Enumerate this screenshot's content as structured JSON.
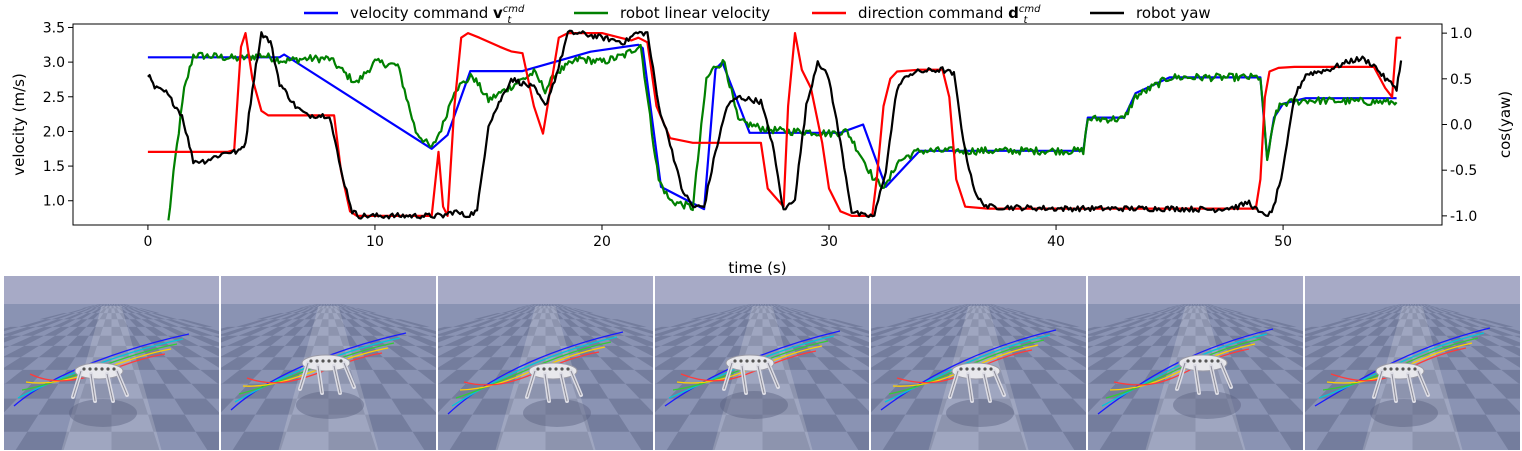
{
  "chart_data": {
    "type": "line",
    "xlabel": "time (s)",
    "ylabel": "velocity (m/s)",
    "ylabel_right": "cos(yaw)",
    "xlim": [
      -3.3,
      57.0
    ],
    "ylim": [
      0.65,
      3.55
    ],
    "ylim_right": [
      -1.1,
      1.1
    ],
    "x_ticks": [
      0,
      10,
      20,
      30,
      40,
      50
    ],
    "y_ticks": [
      1.0,
      1.5,
      2.0,
      2.5,
      3.0,
      3.5
    ],
    "y_ticks_right": [
      -1.0,
      -0.5,
      0.0,
      0.5,
      1.0
    ],
    "legend": {
      "position": "top",
      "entries": [
        {
          "series": "velocity_command",
          "label": "velocity command ",
          "math_bold": "v",
          "math_sub": "t",
          "math_sup": "cmd"
        },
        {
          "series": "robot_linear_velocity",
          "label": "robot linear velocity"
        },
        {
          "series": "direction_command",
          "label": "direction command ",
          "math_bold": "d",
          "math_sub": "t",
          "math_sup": "cmd"
        },
        {
          "series": "robot_yaw",
          "label": "robot yaw"
        }
      ]
    },
    "series": [
      {
        "id": "velocity_command",
        "axis": "left",
        "color": "#0000ff",
        "x": [
          0,
          5.8,
          6.0,
          12.5,
          13.2,
          14.2,
          16.5,
          19.5,
          21.6,
          21.8,
          22.6,
          24.5,
          25.0,
          25.3,
          26.5,
          27.5,
          30.5,
          31.5,
          32.5,
          33.5,
          34.0,
          41.2,
          41.4,
          43.0,
          43.5,
          45.0,
          49.0,
          49.3,
          49.6,
          50.0,
          51.0,
          55.0
        ],
        "y": [
          3.07,
          3.07,
          3.11,
          1.75,
          1.95,
          2.87,
          2.87,
          3.15,
          3.25,
          3.2,
          1.2,
          0.88,
          2.9,
          3.0,
          1.98,
          1.98,
          1.98,
          2.1,
          1.2,
          1.55,
          1.72,
          1.72,
          2.2,
          2.2,
          2.55,
          2.78,
          2.78,
          1.6,
          2.2,
          2.4,
          2.48,
          2.48
        ]
      },
      {
        "id": "robot_linear_velocity",
        "axis": "left",
        "color": "#008000",
        "x": [
          0.9,
          1.2,
          1.6,
          2.0,
          3.0,
          4.0,
          5.0,
          6.0,
          7.0,
          8.0,
          8.8,
          9.2,
          10.0,
          11.0,
          11.3,
          11.8,
          12.5,
          13.0,
          13.5,
          14.3,
          15.0,
          16.0,
          17.0,
          17.5,
          18.0,
          19.0,
          20.0,
          21.0,
          21.7,
          22.2,
          22.5,
          23.0,
          24.0,
          24.6,
          25.0,
          25.4,
          26.0,
          27.0,
          28.0,
          29.0,
          30.0,
          30.8,
          31.5,
          32.0,
          32.5,
          33.0,
          33.5,
          34.0,
          36.0,
          38.0,
          40.0,
          41.2,
          41.4,
          43.0,
          43.5,
          45.0,
          48.5,
          49.0,
          49.3,
          49.7,
          50.0,
          51.0,
          55.0
        ],
        "y": [
          0.7,
          1.6,
          2.6,
          3.1,
          3.08,
          3.05,
          3.1,
          3.02,
          3.05,
          3.05,
          2.8,
          2.7,
          3.0,
          2.95,
          2.6,
          2.0,
          1.75,
          2.1,
          2.6,
          2.8,
          2.45,
          2.65,
          2.85,
          2.6,
          2.85,
          3.05,
          3.0,
          3.1,
          3.25,
          2.0,
          1.3,
          1.0,
          0.9,
          2.75,
          2.95,
          3.0,
          2.15,
          2.05,
          2.0,
          2.0,
          1.97,
          2.0,
          1.6,
          1.3,
          1.2,
          1.55,
          1.65,
          1.72,
          1.72,
          1.72,
          1.72,
          1.72,
          2.18,
          2.18,
          2.5,
          2.78,
          2.78,
          2.78,
          1.6,
          2.3,
          2.4,
          2.45,
          2.42
        ],
        "noise": 0.055
      },
      {
        "id": "direction_command",
        "axis": "right",
        "color": "#ff0000",
        "x": [
          0,
          3.5,
          3.8,
          4.1,
          4.3,
          4.6,
          5.0,
          5.3,
          6.0,
          8.2,
          8.5,
          8.9,
          9.2,
          10.0,
          12.5,
          12.8,
          13.0,
          13.2,
          13.5,
          13.8,
          14.1,
          14.6,
          15.5,
          16.0,
          16.5,
          17.0,
          17.4,
          17.8,
          18.1,
          18.5,
          19.0,
          20.0,
          20.8,
          21.3,
          21.6,
          22.0,
          22.4,
          23.0,
          24.0,
          26.0,
          27.0,
          27.3,
          28.0,
          28.2,
          28.5,
          28.8,
          29.2,
          29.7,
          30.0,
          30.5,
          31.0,
          31.5,
          31.9,
          32.1,
          32.4,
          32.7,
          33.0,
          34.0,
          35.0,
          35.3,
          35.6,
          36.0,
          37.0,
          40.0,
          45.0,
          48.0,
          48.8,
          49.0,
          49.2,
          49.4,
          49.8,
          50.5,
          51.0,
          54.0,
          54.5,
          54.8,
          55.0,
          55.2
        ],
        "y": [
          -0.3,
          -0.3,
          -0.28,
          0.85,
          1.0,
          0.5,
          0.15,
          0.1,
          0.1,
          0.1,
          -0.5,
          -0.95,
          -1.0,
          -1.0,
          -1.0,
          -0.3,
          -0.9,
          -1.0,
          0.2,
          0.95,
          1.0,
          0.95,
          0.85,
          0.8,
          0.78,
          0.2,
          -0.1,
          0.5,
          0.95,
          1.0,
          1.0,
          1.0,
          0.95,
          0.92,
          0.95,
          0.9,
          0.2,
          -0.15,
          -0.2,
          -0.2,
          -0.2,
          -0.7,
          -0.9,
          0.2,
          1.0,
          0.6,
          0.4,
          -0.2,
          -0.7,
          -0.95,
          -1.0,
          -1.0,
          -1.0,
          -0.6,
          0.2,
          0.5,
          0.58,
          0.6,
          0.6,
          0.3,
          -0.6,
          -0.9,
          -0.92,
          -0.92,
          -0.92,
          -0.92,
          -0.92,
          -0.6,
          0.3,
          0.58,
          0.62,
          0.63,
          0.63,
          0.63,
          0.4,
          0.3,
          0.95,
          0.95
        ]
      },
      {
        "id": "robot_yaw",
        "axis": "right",
        "color": "#000000",
        "x": [
          0,
          0.3,
          0.8,
          1.5,
          2.0,
          2.5,
          3.0,
          3.5,
          3.8,
          4.0,
          4.3,
          4.6,
          5.0,
          5.4,
          5.8,
          6.5,
          7.0,
          8.0,
          8.5,
          9.0,
          9.3,
          9.6,
          10.0,
          11.0,
          12.0,
          13.0,
          13.5,
          14.0,
          14.5,
          15.0,
          16.0,
          17.0,
          17.5,
          18.0,
          18.5,
          19.0,
          20.0,
          21.0,
          21.5,
          22.0,
          22.5,
          23.0,
          23.5,
          24.0,
          24.5,
          25.0,
          25.5,
          26.0,
          27.0,
          27.5,
          28.0,
          28.5,
          29.0,
          29.5,
          30.0,
          30.5,
          31.0,
          31.5,
          32.0,
          32.5,
          33.0,
          33.5,
          34.0,
          35.0,
          35.5,
          36.0,
          36.5,
          37.0,
          40.0,
          45.0,
          47.0,
          48.0,
          48.5,
          49.0,
          49.5,
          50.0,
          50.5,
          51.0,
          52.0,
          53.0,
          53.5,
          54.0,
          54.5,
          55.0,
          55.2
        ],
        "y": [
          0.55,
          0.4,
          0.35,
          0.1,
          -0.4,
          -0.4,
          -0.35,
          -0.3,
          -0.3,
          -0.3,
          -0.2,
          0.4,
          1.0,
          0.9,
          0.45,
          0.2,
          0.1,
          0.1,
          -0.5,
          -0.95,
          -1.0,
          -1.0,
          -1.0,
          -1.0,
          -1.0,
          -1.0,
          -0.95,
          -1.0,
          -0.95,
          0.0,
          0.5,
          0.4,
          0.2,
          0.55,
          1.0,
          1.0,
          0.95,
          0.9,
          1.0,
          1.0,
          0.2,
          -0.2,
          -0.7,
          -0.9,
          -0.9,
          -0.3,
          0.2,
          0.3,
          0.25,
          -0.2,
          -0.95,
          -0.8,
          0.2,
          0.7,
          0.5,
          -0.2,
          -0.95,
          -1.0,
          -1.0,
          -0.5,
          0.4,
          0.55,
          0.58,
          0.6,
          0.55,
          -0.3,
          -0.8,
          -0.9,
          -0.92,
          -0.92,
          -0.93,
          -0.9,
          -0.85,
          -0.98,
          -0.98,
          -0.5,
          0.3,
          0.55,
          0.6,
          0.7,
          0.72,
          0.65,
          0.5,
          0.4,
          0.7
        ],
        "noise": 0.03
      }
    ]
  },
  "panels": [
    {
      "name": "sim-frame-1",
      "sky_color": "#a7aac6",
      "floor_color": "#8a93b3"
    },
    {
      "name": "sim-frame-2",
      "sky_color": "#a7aac6",
      "floor_color": "#8a93b3"
    },
    {
      "name": "sim-frame-3",
      "sky_color": "#a7aac6",
      "floor_color": "#8a93b3"
    },
    {
      "name": "sim-frame-4",
      "sky_color": "#a7aac6",
      "floor_color": "#8a93b3"
    },
    {
      "name": "sim-frame-5",
      "sky_color": "#a7aac6",
      "floor_color": "#8a93b3"
    },
    {
      "name": "sim-frame-6",
      "sky_color": "#a7aac6",
      "floor_color": "#8a93b3"
    },
    {
      "name": "sim-frame-7",
      "sky_color": "#a7aac6",
      "floor_color": "#8a93b3"
    }
  ]
}
